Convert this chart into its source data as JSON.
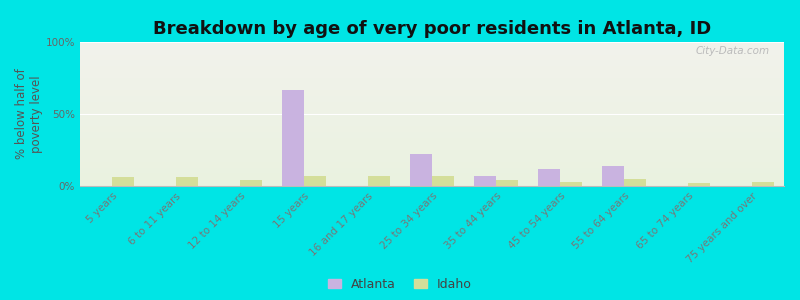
{
  "title": "Breakdown by age of very poor residents in Atlanta, ID",
  "ylabel": "% below half of\npoverty level",
  "categories": [
    "5 years",
    "6 to 11 years",
    "12 to 14 years",
    "15 years",
    "16 and 17 years",
    "25 to 34 years",
    "35 to 44 years",
    "45 to 54 years",
    "55 to 64 years",
    "65 to 74 years",
    "75 years and over"
  ],
  "atlanta_values": [
    0,
    0,
    0,
    67,
    0,
    22,
    7,
    12,
    14,
    0,
    0
  ],
  "idaho_values": [
    6,
    6,
    4,
    7,
    7,
    7,
    4,
    3,
    5,
    2,
    3
  ],
  "atlanta_color": "#c9b3e0",
  "idaho_color": "#d4de9a",
  "background_color": "#00e5e5",
  "plot_bg_top": "#f2f2ec",
  "plot_bg_bottom": "#eaf2e0",
  "bar_width": 0.35,
  "ylim": [
    0,
    100
  ],
  "yticks": [
    0,
    50,
    100
  ],
  "ytick_labels": [
    "0%",
    "50%",
    "100%"
  ],
  "title_fontsize": 13,
  "axis_label_fontsize": 8.5,
  "tick_fontsize": 7.5,
  "legend_labels": [
    "Atlanta",
    "Idaho"
  ],
  "watermark": "City-Data.com"
}
